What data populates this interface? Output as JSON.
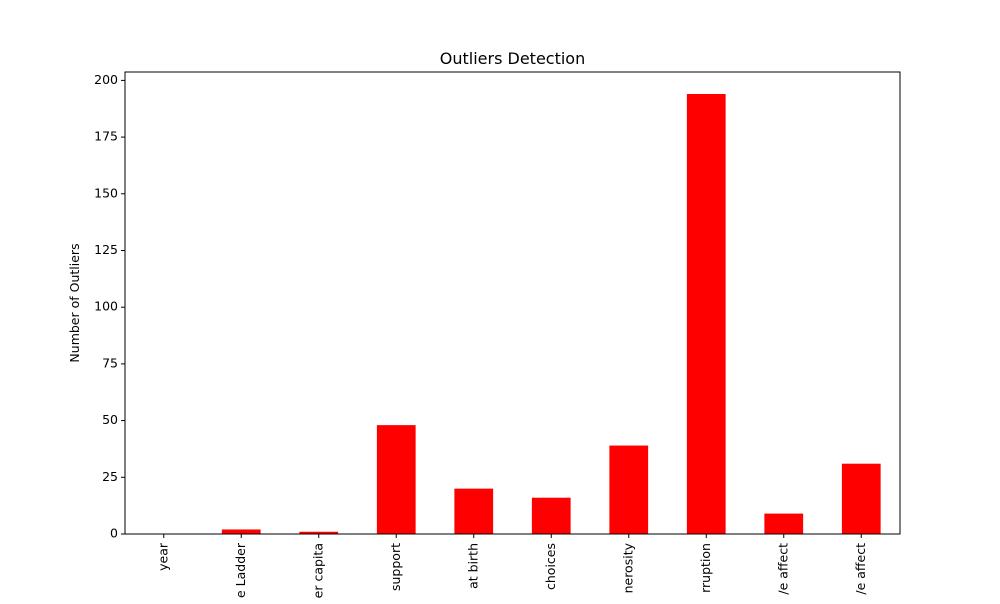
{
  "chart_data": {
    "type": "bar",
    "title": "Outliers Detection",
    "xlabel": "",
    "ylabel": "Number of Outliers",
    "categories": [
      "year",
      "Life Ladder",
      "Log GDP per capita",
      "Social support",
      "Healthy life expectancy at birth",
      "Freedom to make life choices",
      "Generosity",
      "Perceptions of corruption",
      "Positive affect",
      "Negative affect"
    ],
    "visible_tick_labels": [
      "year",
      "e Ladder",
      "er capita",
      "support",
      "at birth",
      "choices",
      "nerosity",
      "rruption",
      "/e affect",
      "/e affect"
    ],
    "values": [
      0,
      2,
      1,
      48,
      20,
      16,
      39,
      194,
      9,
      31
    ],
    "ylim": [
      0,
      203.7
    ],
    "yticks": [
      0,
      25,
      50,
      75,
      100,
      125,
      150,
      175,
      200
    ],
    "grid": false,
    "legend": "none",
    "colors": {
      "bar": "#ff0000",
      "axis": "#000000",
      "background": "#ffffff"
    }
  }
}
